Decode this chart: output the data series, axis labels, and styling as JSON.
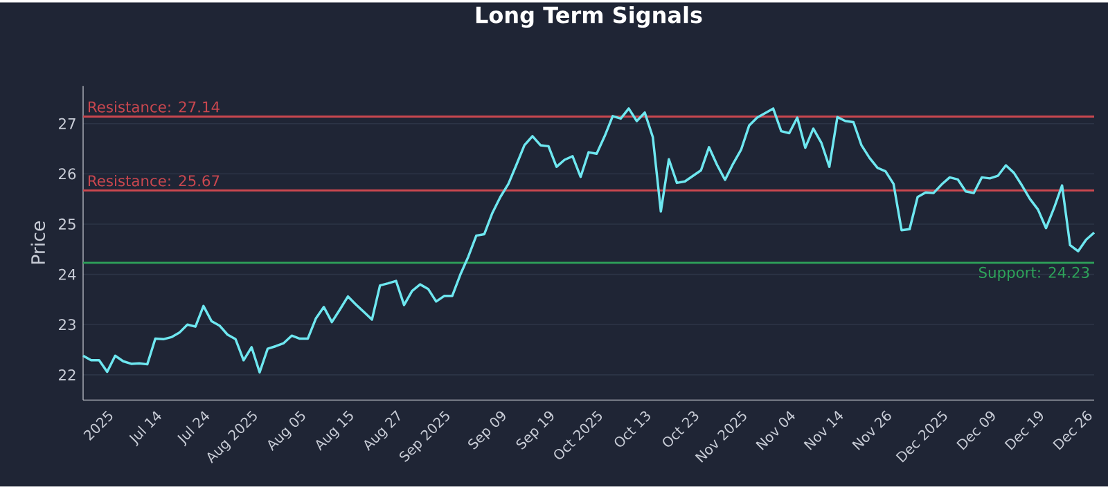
{
  "chart_data": {
    "type": "line",
    "title": "Long Term Signals",
    "ylabel": "Price",
    "categories": [
      null,
      null,
      null,
      "2025",
      null,
      null,
      null,
      null,
      null,
      "Jul 14",
      null,
      null,
      null,
      null,
      null,
      "Jul 24",
      null,
      null,
      null,
      null,
      null,
      "Aug 2025",
      null,
      null,
      null,
      null,
      null,
      "Aug 05",
      null,
      null,
      null,
      null,
      null,
      "Aug 15",
      null,
      null,
      null,
      null,
      null,
      "Aug 27",
      null,
      null,
      null,
      null,
      null,
      "Sep 2025",
      null,
      null,
      null,
      null,
      null,
      null,
      "Sep 09",
      null,
      null,
      null,
      null,
      null,
      "Sep 19",
      null,
      null,
      null,
      null,
      null,
      "Oct 2025",
      null,
      null,
      null,
      null,
      null,
      "Oct 13",
      null,
      null,
      null,
      null,
      null,
      "Oct 23",
      null,
      null,
      null,
      null,
      null,
      "Nov 2025",
      null,
      null,
      null,
      null,
      null,
      "Nov 04",
      null,
      null,
      null,
      null,
      null,
      "Nov 14",
      null,
      null,
      null,
      null,
      null,
      "Nov 26",
      null,
      null,
      null,
      null,
      null,
      null,
      "Dec 2025",
      null,
      null,
      null,
      null,
      null,
      "Dec 09",
      null,
      null,
      null,
      null,
      null,
      "Dec 19",
      null,
      null,
      null,
      null,
      null,
      "Dec 26",
      null
    ],
    "series": [
      {
        "color": "#6ee7f0",
        "values": [
          22.38,
          22.29,
          22.29,
          22.06,
          22.38,
          22.27,
          22.22,
          22.23,
          22.21,
          22.72,
          22.71,
          22.75,
          22.84,
          23.0,
          22.96,
          23.37,
          23.07,
          22.98,
          22.8,
          22.71,
          22.29,
          22.55,
          22.05,
          22.52,
          22.57,
          22.63,
          22.78,
          22.72,
          22.72,
          23.12,
          23.35,
          23.05,
          23.3,
          23.56,
          23.4,
          23.25,
          23.1,
          23.78,
          23.82,
          23.87,
          23.39,
          23.67,
          23.8,
          23.71,
          23.46,
          23.57,
          23.57,
          23.99,
          24.35,
          24.77,
          24.8,
          25.22,
          25.54,
          25.8,
          26.18,
          26.57,
          26.75,
          26.57,
          26.55,
          26.14,
          26.28,
          26.35,
          25.94,
          26.43,
          26.4,
          26.75,
          27.15,
          27.1,
          27.3,
          27.05,
          27.22,
          26.73,
          25.25,
          26.29,
          25.82,
          25.85,
          25.96,
          26.07,
          26.53,
          26.18,
          25.88,
          26.2,
          26.48,
          26.96,
          27.12,
          27.21,
          27.3,
          26.85,
          26.81,
          27.12,
          26.52,
          26.9,
          26.62,
          26.14,
          27.13,
          27.05,
          27.03,
          26.57,
          26.32,
          26.12,
          26.05,
          25.8,
          24.88,
          24.9,
          25.54,
          25.63,
          25.62,
          25.79,
          25.93,
          25.89,
          25.65,
          25.62,
          25.93,
          25.91,
          25.96,
          26.17,
          26.02,
          25.77,
          25.5,
          25.29,
          24.92,
          25.32,
          25.77,
          24.58,
          24.46,
          24.69,
          24.83
        ]
      }
    ],
    "ylim": [
      21.5,
      27.75
    ],
    "yticks": [
      22,
      23,
      24,
      25,
      26,
      27
    ],
    "grid": "y",
    "marker": "none",
    "line_style": "solid",
    "ref_lines": [
      {
        "axis": "y",
        "value": 27.14,
        "label": "Resistance: 27.14",
        "color": "#c9474f"
      },
      {
        "axis": "y",
        "value": 25.67,
        "label": "Resistance: 25.67",
        "color": "#c9474f"
      },
      {
        "axis": "y",
        "value": 24.23,
        "label": "Support: 24.23",
        "color": "#2ea35a"
      }
    ]
  }
}
